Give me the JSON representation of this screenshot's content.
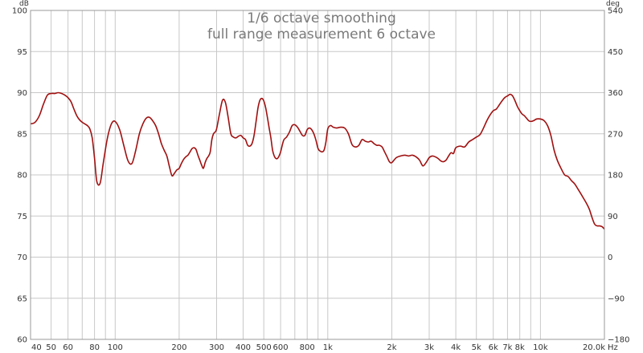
{
  "chart_data": {
    "type": "line",
    "title": "1/6 octave smoothing",
    "subtitle": "full range measurement  6 octave",
    "x_scale": "log",
    "xlim": [
      40,
      20000
    ],
    "ylim": [
      60,
      100
    ],
    "y_unit": "dB",
    "y2lim": [
      -180,
      540
    ],
    "y2_unit": "deg",
    "x_unit": "Hz",
    "grid": true,
    "line_color": "#a01010",
    "x_ticks": [
      {
        "value": 40,
        "label": "40"
      },
      {
        "value": 50,
        "label": "50"
      },
      {
        "value": 60,
        "label": "60"
      },
      {
        "value": 80,
        "label": "80"
      },
      {
        "value": 100,
        "label": "100"
      },
      {
        "value": 200,
        "label": "200"
      },
      {
        "value": 300,
        "label": "300"
      },
      {
        "value": 400,
        "label": "400"
      },
      {
        "value": 500,
        "label": "500"
      },
      {
        "value": 600,
        "label": "600"
      },
      {
        "value": 800,
        "label": "800"
      },
      {
        "value": 1000,
        "label": "1k"
      },
      {
        "value": 2000,
        "label": "2k"
      },
      {
        "value": 3000,
        "label": "3k"
      },
      {
        "value": 4000,
        "label": "4k"
      },
      {
        "value": 5000,
        "label": "5k"
      },
      {
        "value": 6000,
        "label": "6k"
      },
      {
        "value": 7000,
        "label": "7k"
      },
      {
        "value": 8000,
        "label": "8k"
      },
      {
        "value": 10000,
        "label": "10k"
      },
      {
        "value": 20000,
        "label": "20.0k"
      }
    ],
    "x_gridlines": [
      40,
      50,
      60,
      70,
      80,
      90,
      100,
      200,
      300,
      400,
      500,
      600,
      700,
      800,
      900,
      1000,
      2000,
      3000,
      4000,
      5000,
      6000,
      7000,
      8000,
      9000,
      10000,
      20000
    ],
    "y_ticks": [
      "60",
      "65",
      "70",
      "75",
      "80",
      "85",
      "90",
      "95",
      "100"
    ],
    "y_tick_values": [
      60,
      65,
      70,
      75,
      80,
      85,
      90,
      95,
      100
    ],
    "y2_ticks": [
      "−180",
      "−90",
      "0",
      "90",
      "180",
      "270",
      "360",
      "450",
      "540"
    ],
    "series": [
      {
        "x": [
          40,
          42,
          44,
          46,
          48,
          50,
          52,
          54,
          56,
          58,
          60,
          62,
          64,
          66,
          68,
          70,
          72,
          74,
          76,
          78,
          80,
          82,
          85,
          88,
          92,
          96,
          100,
          105,
          110,
          115,
          120,
          125,
          130,
          135,
          140,
          145,
          150,
          155,
          160,
          165,
          170,
          175,
          180,
          185,
          190,
          195,
          200,
          205,
          210,
          215,
          220,
          225,
          230,
          235,
          240,
          245,
          250,
          255,
          260,
          265,
          270,
          275,
          280,
          285,
          290,
          295,
          300,
          310,
          320,
          330,
          340,
          350,
          360,
          370,
          380,
          390,
          400,
          410,
          420,
          430,
          440,
          450,
          460,
          470,
          480,
          490,
          500,
          510,
          520,
          530,
          540,
          550,
          560,
          570,
          580,
          590,
          600,
          620,
          640,
          660,
          680,
          700,
          720,
          740,
          760,
          780,
          800,
          820,
          840,
          860,
          880,
          900,
          920,
          940,
          960,
          980,
          1000,
          1030,
          1060,
          1100,
          1150,
          1200,
          1250,
          1300,
          1350,
          1400,
          1450,
          1500,
          1550,
          1600,
          1650,
          1700,
          1750,
          1800,
          1850,
          1900,
          1950,
          2000,
          2100,
          2200,
          2300,
          2400,
          2500,
          2600,
          2700,
          2800,
          2900,
          3000,
          3100,
          3200,
          3300,
          3400,
          3500,
          3600,
          3700,
          3800,
          3900,
          4000,
          4200,
          4400,
          4600,
          4800,
          5000,
          5200,
          5400,
          5600,
          5800,
          6000,
          6200,
          6400,
          6600,
          6800,
          7000,
          7200,
          7400,
          7600,
          7800,
          8000,
          8200,
          8400,
          8600,
          8800,
          9000,
          9300,
          9600,
          10000,
          10400,
          10800,
          11200,
          11600,
          12000,
          12500,
          13000,
          13500,
          14000,
          14500,
          15000,
          15500,
          16000,
          16500,
          17000,
          17500,
          18000,
          18500,
          19000,
          19500,
          20000
        ],
        "y": [
          86.2,
          86.4,
          87.2,
          88.6,
          89.7,
          89.9,
          89.9,
          90.0,
          89.9,
          89.7,
          89.4,
          88.9,
          88.0,
          87.2,
          86.7,
          86.4,
          86.2,
          86.0,
          85.6,
          84.5,
          82.0,
          79.2,
          79.0,
          81.5,
          84.5,
          86.2,
          86.5,
          85.5,
          83.5,
          81.7,
          81.4,
          83.0,
          85.0,
          86.2,
          86.9,
          87.0,
          86.6,
          86.0,
          85.0,
          83.8,
          83.0,
          82.3,
          81.0,
          79.9,
          80.2,
          80.6,
          80.8,
          81.4,
          81.9,
          82.2,
          82.4,
          82.8,
          83.2,
          83.3,
          83.1,
          82.4,
          81.8,
          81.2,
          80.8,
          81.5,
          82.0,
          82.3,
          82.8,
          84.3,
          85.0,
          85.2,
          85.6,
          87.5,
          89.1,
          88.8,
          87.0,
          85.0,
          84.6,
          84.5,
          84.7,
          84.8,
          84.5,
          84.3,
          83.6,
          83.5,
          83.8,
          84.8,
          86.5,
          88.2,
          89.1,
          89.3,
          89.0,
          88.2,
          87.0,
          85.7,
          84.5,
          83.0,
          82.3,
          82.0,
          82.0,
          82.3,
          82.8,
          84.2,
          84.6,
          85.2,
          86.0,
          86.1,
          85.8,
          85.3,
          84.8,
          84.8,
          85.5,
          85.7,
          85.5,
          85.0,
          84.2,
          83.2,
          82.9,
          82.8,
          83.0,
          84.0,
          85.6,
          86.0,
          85.8,
          85.7,
          85.8,
          85.7,
          85.0,
          83.7,
          83.4,
          83.6,
          84.3,
          84.1,
          84.0,
          84.1,
          83.8,
          83.6,
          83.6,
          83.4,
          82.8,
          82.2,
          81.6,
          81.5,
          82.1,
          82.3,
          82.4,
          82.3,
          82.4,
          82.2,
          81.8,
          81.1,
          81.5,
          82.1,
          82.3,
          82.2,
          82.0,
          81.7,
          81.6,
          81.8,
          82.3,
          82.7,
          82.6,
          83.3,
          83.5,
          83.4,
          84.0,
          84.3,
          84.6,
          84.9,
          85.7,
          86.6,
          87.3,
          87.8,
          88.0,
          88.5,
          89.0,
          89.4,
          89.6,
          89.8,
          89.6,
          89.0,
          88.3,
          87.8,
          87.4,
          87.2,
          86.9,
          86.6,
          86.5,
          86.6,
          86.8,
          86.8,
          86.6,
          86.0,
          84.8,
          83.0,
          81.8,
          80.8,
          80.0,
          79.8,
          79.3,
          78.9,
          78.3,
          77.7,
          77.1,
          76.5,
          75.8,
          74.8,
          74.0,
          73.8,
          73.8,
          73.7,
          73.4
        ]
      }
    ]
  }
}
